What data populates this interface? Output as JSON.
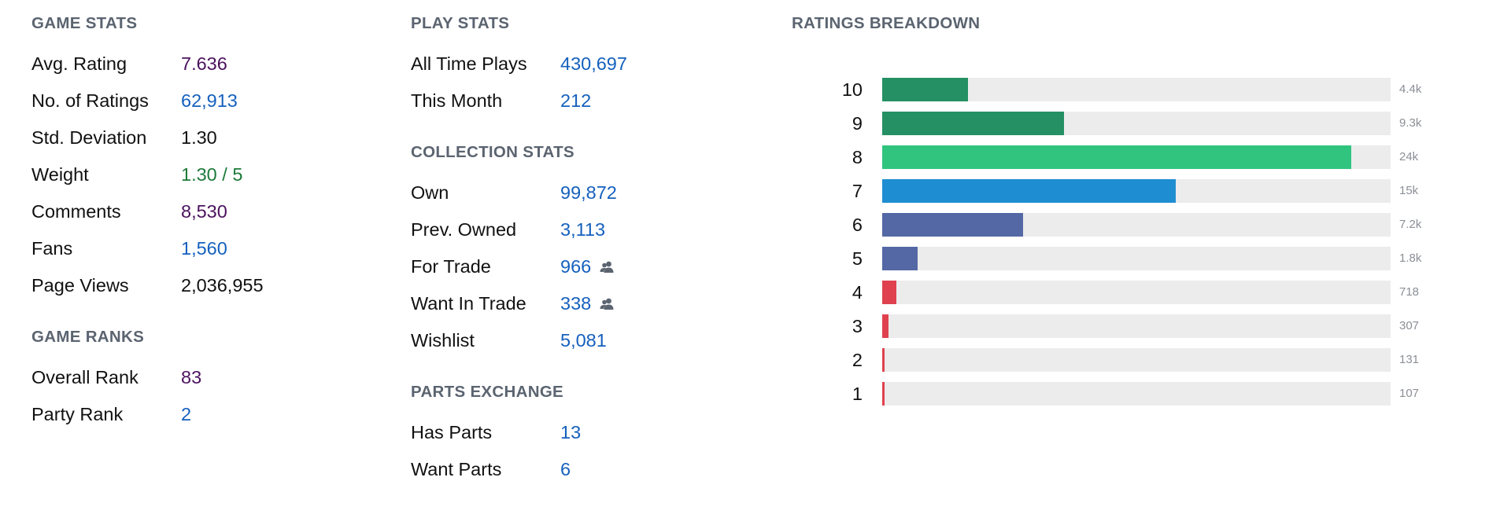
{
  "game_stats": {
    "title": "GAME STATS",
    "rows": [
      {
        "label": "Avg. Rating",
        "value": "7.636",
        "color": "#4b125e"
      },
      {
        "label": "No. of Ratings",
        "value": "62,913",
        "color": "#1560bd"
      },
      {
        "label": "Std. Deviation",
        "value": "1.30",
        "color": "#111111"
      },
      {
        "label": "Weight",
        "value": "1.30 / 5",
        "color": "#1d7a3a"
      },
      {
        "label": "Comments",
        "value": "8,530",
        "color": "#4b125e"
      },
      {
        "label": "Fans",
        "value": "1,560",
        "color": "#1560bd"
      },
      {
        "label": "Page Views",
        "value": "2,036,955",
        "color": "#111111"
      }
    ]
  },
  "game_ranks": {
    "title": "GAME RANKS",
    "rows": [
      {
        "label": "Overall Rank",
        "value": "83",
        "color": "#4b125e"
      },
      {
        "label": "Party Rank",
        "value": "2",
        "color": "#1560bd"
      }
    ]
  },
  "play_stats": {
    "title": "PLAY STATS",
    "rows": [
      {
        "label": "All Time Plays",
        "value": "430,697"
      },
      {
        "label": "This Month",
        "value": "212"
      }
    ]
  },
  "collection_stats": {
    "title": "COLLECTION STATS",
    "rows": [
      {
        "label": "Own",
        "value": "99,872",
        "icon": ""
      },
      {
        "label": "Prev. Owned",
        "value": "3,113",
        "icon": ""
      },
      {
        "label": "For Trade",
        "value": "966",
        "icon": "users-icon"
      },
      {
        "label": "Want In Trade",
        "value": "338",
        "icon": "users-icon"
      },
      {
        "label": "Wishlist",
        "value": "5,081",
        "icon": ""
      }
    ]
  },
  "parts_exchange": {
    "title": "PARTS EXCHANGE",
    "rows": [
      {
        "label": "Has Parts",
        "value": "13"
      },
      {
        "label": "Want Parts",
        "value": "6"
      }
    ]
  },
  "ratings_breakdown": {
    "title": "RATINGS BREAKDOWN",
    "max": 26000,
    "rows": [
      {
        "rating": "10",
        "count": 4400,
        "count_label": "4.4k",
        "color": "#259063"
      },
      {
        "rating": "9",
        "count": 9300,
        "count_label": "9.3k",
        "color": "#259063"
      },
      {
        "rating": "8",
        "count": 24000,
        "count_label": "24k",
        "color": "#30c47f"
      },
      {
        "rating": "7",
        "count": 15000,
        "count_label": "15k",
        "color": "#1f8dd1"
      },
      {
        "rating": "6",
        "count": 7200,
        "count_label": "7.2k",
        "color": "#5368a4"
      },
      {
        "rating": "5",
        "count": 1800,
        "count_label": "1.8k",
        "color": "#5368a4"
      },
      {
        "rating": "4",
        "count": 718,
        "count_label": "718",
        "color": "#e0414f"
      },
      {
        "rating": "3",
        "count": 307,
        "count_label": "307",
        "color": "#e0414f"
      },
      {
        "rating": "2",
        "count": 131,
        "count_label": "131",
        "color": "#e0414f"
      },
      {
        "rating": "1",
        "count": 107,
        "count_label": "107",
        "color": "#e0414f"
      }
    ]
  }
}
